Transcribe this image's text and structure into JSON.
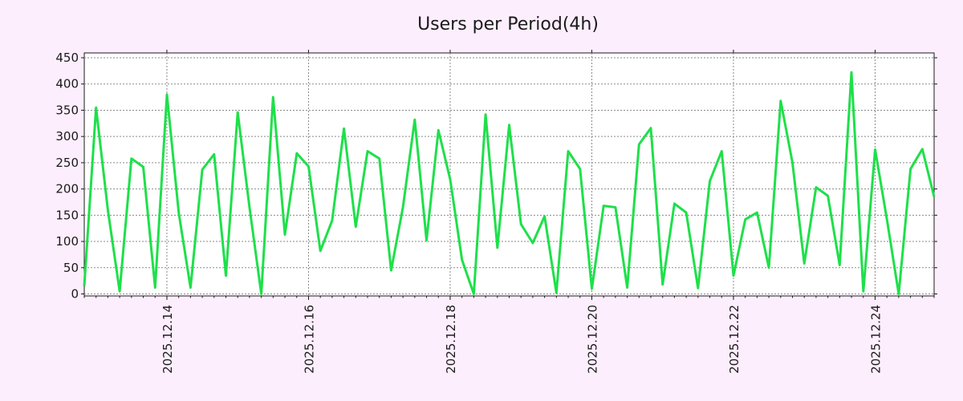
{
  "chart_data": {
    "type": "line",
    "title": "Users per Period(4h)",
    "xlabel": "",
    "ylabel": "",
    "ylim": [
      0,
      460
    ],
    "grid": true,
    "y_ticks": [
      0,
      50,
      100,
      150,
      200,
      250,
      300,
      350,
      400,
      450
    ],
    "x_ticks": [
      "2025.12.14",
      "2025.12.16",
      "2025.12.18",
      "2025.12.20",
      "2025.12.22",
      "2025.12.24"
    ],
    "x_interval_hours": 4,
    "x_start": "2025.12.12 20:00",
    "x_end": "2025.12.24 20:00",
    "series": [
      {
        "name": "",
        "color": "#1ee04a",
        "values": [
          15,
          355,
          160,
          5,
          258,
          242,
          12,
          380,
          155,
          12,
          237,
          266,
          35,
          346,
          165,
          0,
          375,
          113,
          268,
          243,
          82,
          140,
          315,
          128,
          272,
          258,
          45,
          165,
          332,
          102,
          312,
          218,
          65,
          0,
          342,
          88,
          322,
          133,
          97,
          148,
          2,
          272,
          238,
          10,
          168,
          165,
          12,
          285,
          316,
          18,
          172,
          155,
          11,
          215,
          272,
          35,
          142,
          155,
          50,
          368,
          250,
          58,
          203,
          187,
          55,
          422,
          5,
          275,
          142,
          0,
          238,
          276,
          185
        ]
      }
    ]
  }
}
